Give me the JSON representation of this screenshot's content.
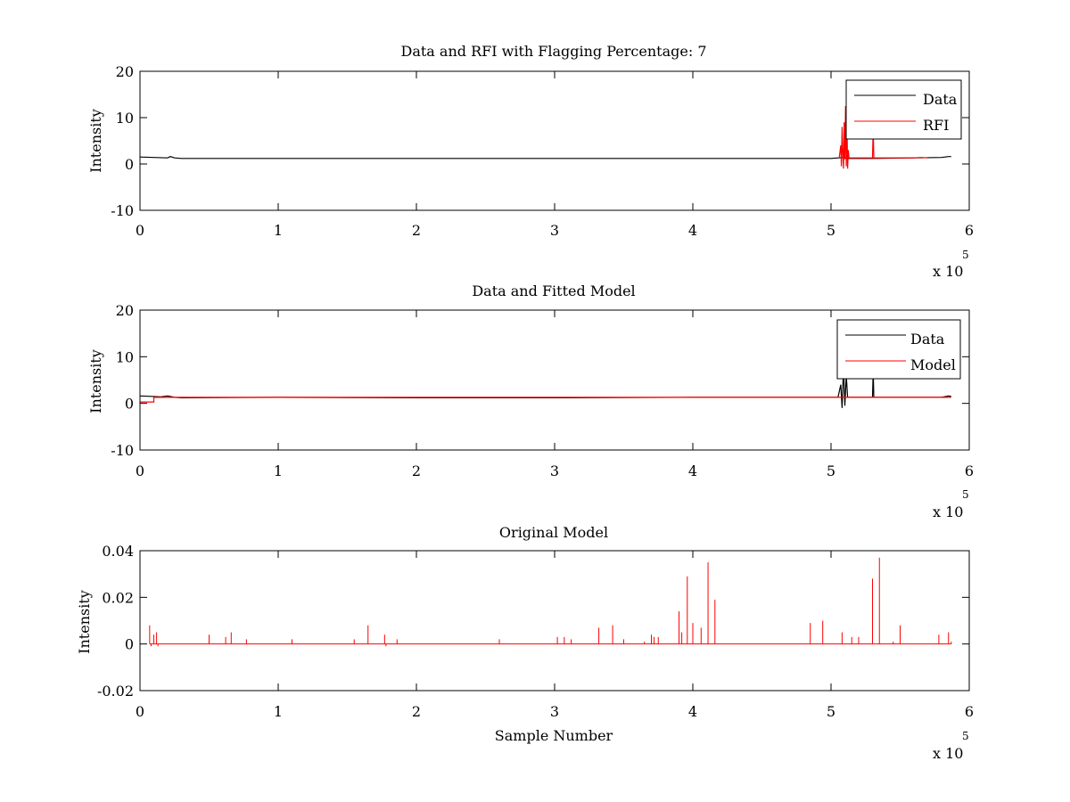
{
  "colors": {
    "data": "#000000",
    "rfi": "#ff0000",
    "model": "#ff0000",
    "background": "#ffffff"
  },
  "chart_data": [
    {
      "type": "line",
      "title": "Data and RFI with Flagging Percentage: 7",
      "xlabel": "",
      "ylabel": "Intensity",
      "xlim": [
        0,
        600000
      ],
      "ylim": [
        -10,
        20
      ],
      "x_ticks": [
        0,
        1,
        2,
        3,
        4,
        5,
        6
      ],
      "y_ticks": [
        -10,
        0,
        10,
        20
      ],
      "x_multiplier": "x 10",
      "x_exponent": "5",
      "grid": false,
      "legend": {
        "position": "top-right",
        "entries": [
          "Data",
          "RFI"
        ]
      },
      "series": [
        {
          "name": "Data",
          "color": "#000000",
          "points": [
            [
              0,
              1.5
            ],
            [
              10000,
              1.4
            ],
            [
              20000,
              1.3
            ],
            [
              22000,
              1.6
            ],
            [
              25000,
              1.3
            ],
            [
              30000,
              1.2
            ],
            [
              100000,
              1.2
            ],
            [
              200000,
              1.2
            ],
            [
              300000,
              1.2
            ],
            [
              400000,
              1.2
            ],
            [
              500000,
              1.2
            ],
            [
              505000,
              1.3
            ],
            [
              510000,
              1.4
            ],
            [
              512000,
              1.2
            ],
            [
              530000,
              1.2
            ],
            [
              560000,
              1.3
            ],
            [
              580000,
              1.4
            ],
            [
              585000,
              1.6
            ],
            [
              587000,
              1.6
            ]
          ]
        },
        {
          "name": "RFI",
          "color": "#ff0000",
          "points": [
            [
              506000,
              1.5
            ],
            [
              507000,
              4
            ],
            [
              507500,
              -0.5
            ],
            [
              508000,
              8
            ],
            [
              508500,
              2
            ],
            [
              509000,
              -1
            ],
            [
              509500,
              9
            ],
            [
              510000,
              1
            ],
            [
              510500,
              12.5
            ],
            [
              511000,
              -0.5
            ],
            [
              511500,
              10
            ],
            [
              512000,
              -1
            ],
            [
              512500,
              3
            ],
            [
              513000,
              1.3
            ],
            [
              530000,
              1.3
            ],
            [
              530500,
              8
            ],
            [
              531000,
              1.3
            ],
            [
              560000,
              1.3
            ],
            [
              565000,
              1.4
            ],
            [
              570000,
              1.3
            ]
          ]
        }
      ]
    },
    {
      "type": "line",
      "title": "Data and Fitted Model",
      "xlabel": "",
      "ylabel": "Intensity",
      "xlim": [
        0,
        600000
      ],
      "ylim": [
        -10,
        20
      ],
      "x_ticks": [
        0,
        1,
        2,
        3,
        4,
        5,
        6
      ],
      "y_ticks": [
        -10,
        0,
        10,
        20
      ],
      "x_multiplier": "x 10",
      "x_exponent": "5",
      "grid": false,
      "legend": {
        "position": "top-right",
        "entries": [
          "Data",
          "Model"
        ]
      },
      "series": [
        {
          "name": "Data",
          "color": "#000000",
          "points": [
            [
              0,
              1.6
            ],
            [
              8000,
              1.5
            ],
            [
              15000,
              1.4
            ],
            [
              20000,
              1.6
            ],
            [
              25000,
              1.3
            ],
            [
              30000,
              1.2
            ],
            [
              100000,
              1.3
            ],
            [
              200000,
              1.2
            ],
            [
              300000,
              1.2
            ],
            [
              400000,
              1.3
            ],
            [
              505000,
              1.3
            ],
            [
              507000,
              4
            ],
            [
              508000,
              -1
            ],
            [
              509000,
              8
            ],
            [
              510000,
              -0.5
            ],
            [
              511000,
              6
            ],
            [
              512000,
              1.3
            ],
            [
              530000,
              1.3
            ],
            [
              530500,
              7
            ],
            [
              531000,
              1.3
            ],
            [
              580000,
              1.3
            ],
            [
              585000,
              1.6
            ],
            [
              587000,
              1.5
            ]
          ]
        },
        {
          "name": "Model",
          "color": "#ff0000",
          "points": [
            [
              0,
              0.3
            ],
            [
              10000,
              0.3
            ],
            [
              10000,
              1.3
            ],
            [
              100000,
              1.3
            ],
            [
              200000,
              1.3
            ],
            [
              300000,
              1.3
            ],
            [
              400000,
              1.3
            ],
            [
              500000,
              1.3
            ],
            [
              587000,
              1.3
            ]
          ]
        }
      ]
    },
    {
      "type": "line",
      "title": "Original Model",
      "xlabel": "Sample Number",
      "ylabel": "Intensity",
      "xlim": [
        0,
        600000
      ],
      "ylim": [
        -0.02,
        0.04
      ],
      "x_ticks": [
        0,
        1,
        2,
        3,
        4,
        5,
        6
      ],
      "y_ticks": [
        "-0.02",
        "0",
        "0.02",
        "0.04"
      ],
      "y_tick_values": [
        -0.02,
        0,
        0.02,
        0.04
      ],
      "x_multiplier": "x 10",
      "x_exponent": "5",
      "grid": false,
      "series": [
        {
          "color": "#ff0000",
          "baseline": 0,
          "spikes": [
            [
              7000,
              0.008
            ],
            [
              8000,
              -0.001
            ],
            [
              10000,
              0.004
            ],
            [
              12000,
              0.005
            ],
            [
              13000,
              -0.001
            ],
            [
              50000,
              0.004
            ],
            [
              62000,
              0.003
            ],
            [
              66000,
              0.005
            ],
            [
              77000,
              0.002
            ],
            [
              110000,
              0.002
            ],
            [
              155000,
              0.002
            ],
            [
              165000,
              0.008
            ],
            [
              177000,
              0.004
            ],
            [
              178000,
              -0.001
            ],
            [
              186000,
              0.002
            ],
            [
              260000,
              0.002
            ],
            [
              302000,
              0.003
            ],
            [
              307000,
              0.003
            ],
            [
              312000,
              0.002
            ],
            [
              332000,
              0.007
            ],
            [
              342000,
              0.008
            ],
            [
              350000,
              0.002
            ],
            [
              365000,
              0.001
            ],
            [
              370000,
              0.004
            ],
            [
              372000,
              0.003
            ],
            [
              375000,
              0.003
            ],
            [
              390000,
              0.014
            ],
            [
              392000,
              0.005
            ],
            [
              396000,
              0.029
            ],
            [
              400000,
              0.009
            ],
            [
              406000,
              0.007
            ],
            [
              411000,
              0.035
            ],
            [
              416000,
              0.019
            ],
            [
              485000,
              0.009
            ],
            [
              494000,
              0.01
            ],
            [
              508000,
              0.005
            ],
            [
              515000,
              0.003
            ],
            [
              520000,
              0.003
            ],
            [
              530000,
              0.028
            ],
            [
              535000,
              0.037
            ],
            [
              545000,
              0.001
            ],
            [
              550000,
              0.008
            ],
            [
              578000,
              0.004
            ],
            [
              585000,
              0.005
            ],
            [
              587000,
              0.001
            ]
          ]
        }
      ]
    }
  ]
}
